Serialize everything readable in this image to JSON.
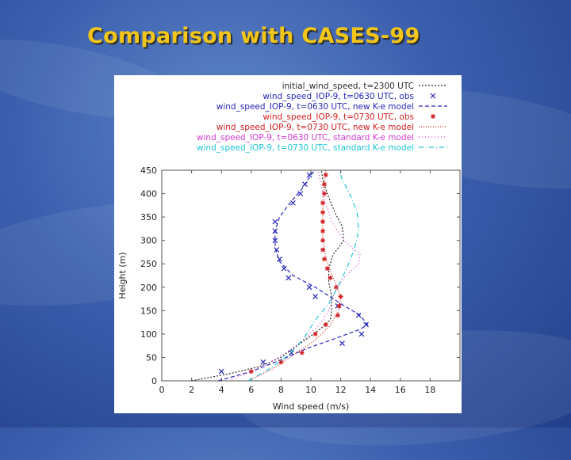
{
  "slide": {
    "title": "Comparison with CASES-99"
  },
  "chart_data": {
    "type": "line",
    "title": "",
    "xlabel": "Wind speed (m/s)",
    "ylabel": "Height (m)",
    "xlim": [
      0,
      20
    ],
    "ylim": [
      0,
      450
    ],
    "xticks": [
      0,
      2,
      4,
      6,
      8,
      10,
      12,
      14,
      16,
      18
    ],
    "yticks": [
      0,
      50,
      100,
      150,
      200,
      250,
      300,
      350,
      400,
      450
    ],
    "legend_position": "top-right",
    "grid": false,
    "series": [
      {
        "name": "initial_wind_speed, t=2300 UTC",
        "style": "line",
        "dash": "2,2",
        "color": "#2b2b2b",
        "points": [
          [
            2.0,
            0
          ],
          [
            4.5,
            15
          ],
          [
            6.5,
            30
          ],
          [
            8.0,
            50
          ],
          [
            9.3,
            80
          ],
          [
            10.6,
            110
          ],
          [
            11.3,
            130
          ],
          [
            11.4,
            150
          ],
          [
            11.4,
            180
          ],
          [
            11.2,
            210
          ],
          [
            11.2,
            240
          ],
          [
            11.5,
            270
          ],
          [
            12.2,
            300
          ],
          [
            12.1,
            330
          ],
          [
            11.6,
            360
          ],
          [
            11.1,
            400
          ],
          [
            10.8,
            430
          ],
          [
            10.7,
            450
          ]
        ]
      },
      {
        "name": "wind_speed_IOP-9, t=0630 UTC, obs",
        "style": "marker",
        "marker": "x",
        "color": "#2727b9",
        "points": [
          [
            4.0,
            20
          ],
          [
            6.8,
            40
          ],
          [
            8.7,
            60
          ],
          [
            12.1,
            80
          ],
          [
            13.4,
            100
          ],
          [
            13.7,
            120
          ],
          [
            13.2,
            140
          ],
          [
            11.8,
            160
          ],
          [
            10.3,
            180
          ],
          [
            9.9,
            200
          ],
          [
            8.5,
            220
          ],
          [
            8.2,
            240
          ],
          [
            7.9,
            260
          ],
          [
            7.7,
            280
          ],
          [
            7.6,
            300
          ],
          [
            7.6,
            320
          ],
          [
            7.6,
            340
          ],
          [
            8.8,
            380
          ],
          [
            9.3,
            400
          ],
          [
            9.6,
            420
          ],
          [
            9.9,
            440
          ]
        ]
      },
      {
        "name": "wind_speed_IOP-9, t=0630 UTC, new K-e model",
        "style": "line",
        "dash": "5,3",
        "color": "#2727b9",
        "points": [
          [
            3.8,
            0
          ],
          [
            6.0,
            20
          ],
          [
            8.0,
            45
          ],
          [
            9.8,
            70
          ],
          [
            11.6,
            90
          ],
          [
            13.3,
            110
          ],
          [
            13.8,
            120
          ],
          [
            13.3,
            140
          ],
          [
            12.0,
            165
          ],
          [
            10.3,
            200
          ],
          [
            8.8,
            225
          ],
          [
            7.9,
            255
          ],
          [
            7.6,
            285
          ],
          [
            7.6,
            320
          ],
          [
            7.9,
            350
          ],
          [
            8.6,
            380
          ],
          [
            9.4,
            410
          ],
          [
            10.0,
            440
          ],
          [
            10.3,
            450
          ]
        ]
      },
      {
        "name": "wind_speed_IOP-9, t=0730 UTC, obs",
        "style": "marker",
        "marker": "*",
        "color": "#d11f1f",
        "points": [
          [
            6.0,
            20
          ],
          [
            8.0,
            40
          ],
          [
            9.4,
            60
          ],
          [
            10.3,
            100
          ],
          [
            11.0,
            120
          ],
          [
            11.8,
            140
          ],
          [
            11.9,
            160
          ],
          [
            12.0,
            180
          ],
          [
            11.7,
            200
          ],
          [
            11.3,
            220
          ],
          [
            11.1,
            240
          ],
          [
            10.9,
            260
          ],
          [
            10.8,
            280
          ],
          [
            10.8,
            300
          ],
          [
            10.8,
            320
          ],
          [
            10.8,
            340
          ],
          [
            10.8,
            360
          ],
          [
            10.8,
            380
          ],
          [
            10.9,
            400
          ],
          [
            10.9,
            420
          ],
          [
            11.0,
            440
          ]
        ]
      },
      {
        "name": "wind_speed_IOP-9, t=0730 UTC, new K-e model",
        "style": "line",
        "dash": "1,2",
        "color": "#d11f1f",
        "points": [
          [
            5.8,
            0
          ],
          [
            7.4,
            25
          ],
          [
            8.8,
            55
          ],
          [
            10.2,
            85
          ],
          [
            11.2,
            115
          ],
          [
            11.8,
            145
          ],
          [
            12.0,
            175
          ],
          [
            11.7,
            205
          ],
          [
            11.3,
            235
          ],
          [
            11.0,
            265
          ],
          [
            10.8,
            300
          ],
          [
            10.8,
            340
          ],
          [
            10.8,
            380
          ],
          [
            10.9,
            420
          ],
          [
            11.0,
            450
          ]
        ]
      },
      {
        "name": "wind_speed_IOP-9, t=0630 UTC, standard K-e model",
        "style": "line",
        "dash": "1,3",
        "color": "#d43ad4",
        "points": [
          [
            4.5,
            0
          ],
          [
            6.0,
            20
          ],
          [
            7.6,
            45
          ],
          [
            9.2,
            80
          ],
          [
            10.6,
            120
          ],
          [
            11.2,
            150
          ],
          [
            11.6,
            190
          ],
          [
            12.2,
            220
          ],
          [
            13.2,
            250
          ],
          [
            13.3,
            270
          ],
          [
            12.2,
            300
          ],
          [
            11.4,
            340
          ],
          [
            10.9,
            390
          ],
          [
            10.6,
            430
          ],
          [
            10.5,
            450
          ]
        ]
      },
      {
        "name": "wind_speed_IOP-9, t=0730 UTC, standard K-e model",
        "style": "line",
        "dash": "6,3,1,3",
        "color": "#1fc6d8",
        "points": [
          [
            5.8,
            0
          ],
          [
            7.2,
            25
          ],
          [
            8.5,
            55
          ],
          [
            9.5,
            90
          ],
          [
            10.3,
            130
          ],
          [
            11.2,
            165
          ],
          [
            11.8,
            200
          ],
          [
            12.4,
            240
          ],
          [
            12.9,
            280
          ],
          [
            13.2,
            320
          ],
          [
            13.1,
            360
          ],
          [
            12.6,
            400
          ],
          [
            12.1,
            430
          ],
          [
            11.9,
            450
          ]
        ]
      }
    ]
  }
}
